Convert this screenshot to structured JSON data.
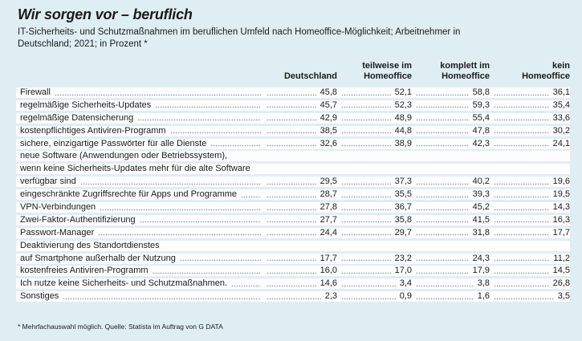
{
  "colors": {
    "background": "#dfeef3",
    "row_band": "#fdfdfd",
    "text": "#1b1b1a",
    "dots_color": "#93a4aa"
  },
  "header": {
    "title": "Wir sorgen vor – beruflich",
    "subtitle_lines": [
      "IT-Sicherheits- und Schutzmaßnahmen im beruflichen Umfeld nach Homeoffice-Möglichkeit; Arbeitnehmer in",
      "Deutschland; 2021; in Prozent *"
    ]
  },
  "table": {
    "columns": [
      {
        "id": "deutschland",
        "lines": [
          "",
          "Deutschland"
        ]
      },
      {
        "id": "teilweise-homeoffice",
        "lines": [
          "teilweise im",
          "Homeoffice"
        ]
      },
      {
        "id": "komplett-homeoffice",
        "lines": [
          "komplett im",
          "Homeoffice"
        ]
      },
      {
        "id": "kein-homeoffice",
        "lines": [
          "kein",
          "Homeoffice"
        ]
      }
    ],
    "rows": [
      {
        "label": "Firewall",
        "values": [
          "45,8",
          "52,1",
          "58,8",
          "36,1"
        ]
      },
      {
        "label": "regelmäßige Sicherheits-Updates",
        "values": [
          "45,7",
          "52,3",
          "59,3",
          "35,4"
        ]
      },
      {
        "label": "regelmäßige Datensicherung",
        "values": [
          "42,9",
          "48,9",
          "55,4",
          "33,6"
        ]
      },
      {
        "label": "kostenpflichtiges Antiviren-Programm",
        "values": [
          "38,5",
          "44,8",
          "47,8",
          "30,2"
        ]
      },
      {
        "label": "sichere, einzigartige Passwörter für alle Dienste",
        "values": [
          "32,6",
          "38,9",
          "42,3",
          "24,1"
        ]
      },
      {
        "label": "neue Software (Anwendungen oder Betriebssystem),",
        "values": []
      },
      {
        "label": "wenn keine Sicherheits-Updates mehr für die alte Software",
        "values": []
      },
      {
        "label": "verfügbar sind",
        "values": [
          "29,5",
          "37,3",
          "40,2",
          "19,6"
        ]
      },
      {
        "label": "eingeschränkte Zugriffsrechte für Apps und Programme",
        "values": [
          "28,7",
          "35,5",
          "39,3",
          "19,5"
        ]
      },
      {
        "label": "VPN-Verbindungen",
        "values": [
          "27,8",
          "36,7",
          "45,2",
          "14,3"
        ]
      },
      {
        "label": "Zwei-Faktor-Authentifizierung",
        "values": [
          "27,7",
          "35,8",
          "41,5",
          "16,3"
        ]
      },
      {
        "label": "Passwort-Manager",
        "values": [
          "24,4",
          "29,7",
          "31,8",
          "17,7"
        ]
      },
      {
        "label": "Deaktivierung des Standortdienstes",
        "values": []
      },
      {
        "label": "auf Smartphone außerhalb der Nutzung",
        "values": [
          "17,7",
          "23,2",
          "24,3",
          "11,2"
        ]
      },
      {
        "label": "kostenfreies Antiviren-Programm",
        "values": [
          "16,0",
          "17,0",
          "17,9",
          "14,5"
        ]
      },
      {
        "label": "Ich nutze keine Sicherheits- und Schutzmaßnahmen.",
        "values": [
          "14,6",
          "3,4",
          "3,8",
          "26,8"
        ]
      },
      {
        "label": "Sonstiges",
        "values": [
          "2,3",
          "0,9",
          "1,6",
          "3,5"
        ]
      }
    ]
  },
  "footer": {
    "note": "* Mehrfachauswahl möglich. Quelle: Statista im Auftrag von G DATA"
  },
  "chart_data": {
    "type": "table",
    "title": "Wir sorgen vor – beruflich",
    "subtitle": "IT-Sicherheits- und Schutzmaßnahmen im beruflichen Umfeld nach Homeoffice-Möglichkeit; Arbeitnehmer in Deutschland; 2021; in Prozent *",
    "unit": "percent",
    "categories": [
      "Firewall",
      "regelmäßige Sicherheits-Updates",
      "regelmäßige Datensicherung",
      "kostenpflichtiges Antiviren-Programm",
      "sichere, einzigartige Passwörter für alle Dienste",
      "neue Software (Anwendungen oder Betriebssystem), wenn keine Sicherheits-Updates mehr für die alte Software verfügbar sind",
      "eingeschränkte Zugriffsrechte für Apps und Programme",
      "VPN-Verbindungen",
      "Zwei-Faktor-Authentifizierung",
      "Passwort-Manager",
      "Deaktivierung des Standortdienstes auf Smartphone außerhalb der Nutzung",
      "kostenfreies Antiviren-Programm",
      "Ich nutze keine Sicherheits- und Schutzmaßnahmen.",
      "Sonstiges"
    ],
    "series": [
      {
        "name": "Deutschland",
        "values": [
          45.8,
          45.7,
          42.9,
          38.5,
          32.6,
          29.5,
          28.7,
          27.8,
          27.7,
          24.4,
          17.7,
          16.0,
          14.6,
          2.3
        ]
      },
      {
        "name": "teilweise im Homeoffice",
        "values": [
          52.1,
          52.3,
          48.9,
          44.8,
          38.9,
          37.3,
          35.5,
          36.7,
          35.8,
          29.7,
          23.2,
          17.0,
          3.4,
          0.9
        ]
      },
      {
        "name": "komplett im Homeoffice",
        "values": [
          58.8,
          59.3,
          55.4,
          47.8,
          42.3,
          40.2,
          39.3,
          45.2,
          41.5,
          31.8,
          24.3,
          17.9,
          3.8,
          1.6
        ]
      },
      {
        "name": "kein Homeoffice",
        "values": [
          36.1,
          35.4,
          33.6,
          30.2,
          24.1,
          19.6,
          19.5,
          14.3,
          16.3,
          17.7,
          11.2,
          14.5,
          26.8,
          3.5
        ]
      }
    ],
    "footnote": "* Mehrfachauswahl möglich. Quelle: Statista im Auftrag von G DATA"
  }
}
